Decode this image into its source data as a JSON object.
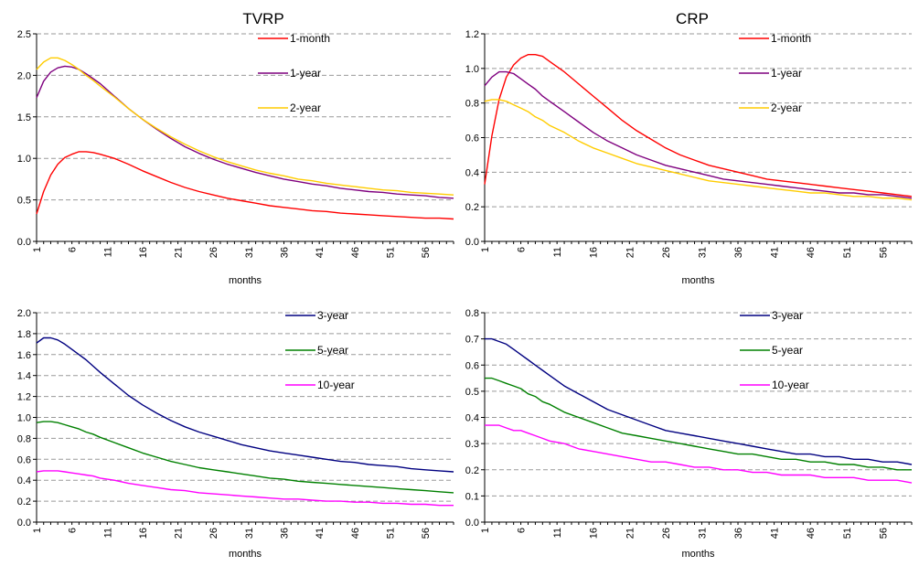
{
  "chart_data": [
    {
      "type": "line",
      "title": "TVRP",
      "xlabel": "months",
      "ylabel": "",
      "x_tick_labels": [
        "1",
        "6",
        "11",
        "16",
        "21",
        "26",
        "31",
        "36",
        "41",
        "46",
        "51",
        "56"
      ],
      "x_range": [
        1,
        60
      ],
      "ylim": [
        0,
        2.5
      ],
      "y_ticks": [
        "0.0",
        "0.5",
        "1.0",
        "1.5",
        "2.0",
        "2.5"
      ],
      "grid": "horizontal dashed",
      "legend_position": "top-right",
      "series": [
        {
          "name": "1-month",
          "color": "#ff0000",
          "x": [
            1,
            2,
            3,
            4,
            5,
            6,
            7,
            8,
            9,
            10,
            12,
            14,
            16,
            18,
            20,
            22,
            24,
            26,
            28,
            30,
            32,
            34,
            36,
            38,
            40,
            42,
            44,
            46,
            48,
            50,
            52,
            54,
            56,
            58,
            60
          ],
          "values": [
            0.33,
            0.6,
            0.8,
            0.93,
            1.01,
            1.05,
            1.08,
            1.08,
            1.07,
            1.05,
            1.0,
            0.93,
            0.85,
            0.78,
            0.71,
            0.65,
            0.6,
            0.56,
            0.52,
            0.49,
            0.46,
            0.43,
            0.41,
            0.39,
            0.37,
            0.36,
            0.34,
            0.33,
            0.32,
            0.31,
            0.3,
            0.29,
            0.28,
            0.28,
            0.27
          ]
        },
        {
          "name": "1-year",
          "color": "#7f007f",
          "x": [
            1,
            2,
            3,
            4,
            5,
            6,
            7,
            8,
            9,
            10,
            12,
            14,
            16,
            18,
            20,
            22,
            24,
            26,
            28,
            30,
            32,
            34,
            36,
            38,
            40,
            42,
            44,
            46,
            48,
            50,
            52,
            54,
            56,
            58,
            60
          ],
          "values": [
            1.73,
            1.93,
            2.04,
            2.09,
            2.11,
            2.1,
            2.07,
            2.02,
            1.96,
            1.9,
            1.75,
            1.6,
            1.47,
            1.35,
            1.24,
            1.14,
            1.06,
            0.99,
            0.93,
            0.88,
            0.83,
            0.79,
            0.75,
            0.72,
            0.69,
            0.67,
            0.64,
            0.62,
            0.6,
            0.59,
            0.57,
            0.56,
            0.55,
            0.53,
            0.52
          ]
        },
        {
          "name": "2-year",
          "color": "#ffcc00",
          "x": [
            1,
            2,
            3,
            4,
            5,
            6,
            7,
            8,
            9,
            10,
            12,
            14,
            16,
            18,
            20,
            22,
            24,
            26,
            28,
            30,
            32,
            34,
            36,
            38,
            40,
            42,
            44,
            46,
            48,
            50,
            52,
            54,
            56,
            58,
            60
          ],
          "values": [
            2.07,
            2.16,
            2.21,
            2.21,
            2.18,
            2.13,
            2.07,
            2.0,
            1.94,
            1.87,
            1.74,
            1.6,
            1.47,
            1.36,
            1.26,
            1.17,
            1.09,
            1.02,
            0.96,
            0.91,
            0.86,
            0.82,
            0.79,
            0.75,
            0.73,
            0.7,
            0.68,
            0.66,
            0.64,
            0.62,
            0.61,
            0.59,
            0.58,
            0.57,
            0.56
          ]
        }
      ]
    },
    {
      "type": "line",
      "title": "CRP",
      "xlabel": "months",
      "ylabel": "",
      "x_tick_labels": [
        "1",
        "6",
        "11",
        "16",
        "21",
        "26",
        "31",
        "36",
        "41",
        "46",
        "51",
        "56"
      ],
      "x_range": [
        1,
        60
      ],
      "ylim": [
        0,
        1.2
      ],
      "y_ticks": [
        "0.0",
        "0.2",
        "0.4",
        "0.6",
        "0.8",
        "1.0",
        "1.2"
      ],
      "grid": "horizontal dashed",
      "legend_position": "top-right",
      "series": [
        {
          "name": "1-month",
          "color": "#ff0000",
          "x": [
            1,
            2,
            3,
            4,
            5,
            6,
            7,
            8,
            9,
            10,
            12,
            14,
            16,
            18,
            20,
            22,
            24,
            26,
            28,
            30,
            32,
            34,
            36,
            38,
            40,
            42,
            44,
            46,
            48,
            50,
            52,
            54,
            56,
            58,
            60
          ],
          "values": [
            0.33,
            0.61,
            0.82,
            0.95,
            1.02,
            1.06,
            1.08,
            1.08,
            1.07,
            1.04,
            0.98,
            0.91,
            0.84,
            0.77,
            0.7,
            0.64,
            0.59,
            0.54,
            0.5,
            0.47,
            0.44,
            0.42,
            0.4,
            0.38,
            0.36,
            0.35,
            0.34,
            0.33,
            0.32,
            0.31,
            0.3,
            0.29,
            0.28,
            0.27,
            0.26
          ]
        },
        {
          "name": "1-year",
          "color": "#7f007f",
          "x": [
            1,
            2,
            3,
            4,
            5,
            6,
            7,
            8,
            9,
            10,
            12,
            14,
            16,
            18,
            20,
            22,
            24,
            26,
            28,
            30,
            32,
            34,
            36,
            38,
            40,
            42,
            44,
            46,
            48,
            50,
            52,
            54,
            56,
            58,
            60
          ],
          "values": [
            0.9,
            0.95,
            0.98,
            0.98,
            0.97,
            0.94,
            0.91,
            0.88,
            0.84,
            0.81,
            0.75,
            0.69,
            0.63,
            0.58,
            0.54,
            0.5,
            0.47,
            0.44,
            0.42,
            0.4,
            0.38,
            0.36,
            0.35,
            0.34,
            0.33,
            0.32,
            0.31,
            0.3,
            0.29,
            0.28,
            0.28,
            0.27,
            0.27,
            0.26,
            0.25
          ]
        },
        {
          "name": "2-year",
          "color": "#ffcc00",
          "x": [
            1,
            2,
            3,
            4,
            5,
            6,
            7,
            8,
            9,
            10,
            12,
            14,
            16,
            18,
            20,
            22,
            24,
            26,
            28,
            30,
            32,
            34,
            36,
            38,
            40,
            42,
            44,
            46,
            48,
            50,
            52,
            54,
            56,
            58,
            60
          ],
          "values": [
            0.81,
            0.82,
            0.82,
            0.81,
            0.79,
            0.77,
            0.75,
            0.72,
            0.7,
            0.67,
            0.63,
            0.58,
            0.54,
            0.51,
            0.48,
            0.45,
            0.43,
            0.41,
            0.39,
            0.37,
            0.35,
            0.34,
            0.33,
            0.32,
            0.31,
            0.3,
            0.29,
            0.28,
            0.28,
            0.27,
            0.26,
            0.26,
            0.25,
            0.25,
            0.24
          ]
        }
      ]
    },
    {
      "type": "line",
      "title": "",
      "xlabel": "months",
      "ylabel": "",
      "x_tick_labels": [
        "1",
        "6",
        "11",
        "16",
        "21",
        "26",
        "31",
        "36",
        "41",
        "46",
        "51",
        "56"
      ],
      "x_range": [
        1,
        60
      ],
      "ylim": [
        0,
        2.0
      ],
      "y_ticks": [
        "0.0",
        "0.2",
        "0.4",
        "0.6",
        "0.8",
        "1.0",
        "1.2",
        "1.4",
        "1.6",
        "1.8",
        "2.0"
      ],
      "grid": "horizontal dashed",
      "legend_position": "top-right",
      "series": [
        {
          "name": "3-year",
          "color": "#000080",
          "x": [
            1,
            2,
            3,
            4,
            5,
            6,
            7,
            8,
            9,
            10,
            12,
            14,
            16,
            18,
            20,
            22,
            24,
            26,
            28,
            30,
            32,
            34,
            36,
            38,
            40,
            42,
            44,
            46,
            48,
            50,
            52,
            54,
            56,
            58,
            60
          ],
          "values": [
            1.71,
            1.76,
            1.76,
            1.74,
            1.7,
            1.65,
            1.6,
            1.55,
            1.49,
            1.43,
            1.32,
            1.21,
            1.12,
            1.04,
            0.97,
            0.91,
            0.86,
            0.82,
            0.78,
            0.74,
            0.71,
            0.68,
            0.66,
            0.64,
            0.62,
            0.6,
            0.58,
            0.57,
            0.55,
            0.54,
            0.53,
            0.51,
            0.5,
            0.49,
            0.48
          ]
        },
        {
          "name": "5-year",
          "color": "#008000",
          "x": [
            1,
            2,
            3,
            4,
            5,
            6,
            7,
            8,
            9,
            10,
            12,
            14,
            16,
            18,
            20,
            22,
            24,
            26,
            28,
            30,
            32,
            34,
            36,
            38,
            40,
            42,
            44,
            46,
            48,
            50,
            52,
            54,
            56,
            58,
            60
          ],
          "values": [
            0.95,
            0.96,
            0.96,
            0.95,
            0.93,
            0.91,
            0.89,
            0.86,
            0.84,
            0.81,
            0.76,
            0.71,
            0.66,
            0.62,
            0.58,
            0.55,
            0.52,
            0.5,
            0.48,
            0.46,
            0.44,
            0.42,
            0.41,
            0.39,
            0.38,
            0.37,
            0.36,
            0.35,
            0.34,
            0.33,
            0.32,
            0.31,
            0.3,
            0.29,
            0.28
          ]
        },
        {
          "name": "10-year",
          "color": "#ff00ff",
          "x": [
            1,
            2,
            3,
            4,
            5,
            6,
            7,
            8,
            9,
            10,
            12,
            14,
            16,
            18,
            20,
            22,
            24,
            26,
            28,
            30,
            32,
            34,
            36,
            38,
            40,
            42,
            44,
            46,
            48,
            50,
            52,
            54,
            56,
            58,
            60
          ],
          "values": [
            0.48,
            0.49,
            0.49,
            0.49,
            0.48,
            0.47,
            0.46,
            0.45,
            0.44,
            0.42,
            0.4,
            0.37,
            0.35,
            0.33,
            0.31,
            0.3,
            0.28,
            0.27,
            0.26,
            0.25,
            0.24,
            0.23,
            0.22,
            0.22,
            0.21,
            0.2,
            0.2,
            0.19,
            0.19,
            0.18,
            0.18,
            0.17,
            0.17,
            0.16,
            0.16
          ]
        }
      ]
    },
    {
      "type": "line",
      "title": "",
      "xlabel": "months",
      "ylabel": "",
      "x_tick_labels": [
        "1",
        "6",
        "11",
        "16",
        "21",
        "26",
        "31",
        "36",
        "41",
        "46",
        "51",
        "56"
      ],
      "x_range": [
        1,
        60
      ],
      "ylim": [
        0,
        0.8
      ],
      "y_ticks": [
        "0.0",
        "0.1",
        "0.2",
        "0.3",
        "0.4",
        "0.5",
        "0.6",
        "0.7",
        "0.8"
      ],
      "grid": "horizontal dashed",
      "legend_position": "top-right",
      "series": [
        {
          "name": "3-year",
          "color": "#000080",
          "x": [
            1,
            2,
            3,
            4,
            5,
            6,
            7,
            8,
            9,
            10,
            12,
            14,
            16,
            18,
            20,
            22,
            24,
            26,
            28,
            30,
            32,
            34,
            36,
            38,
            40,
            42,
            44,
            46,
            48,
            50,
            52,
            54,
            56,
            58,
            60
          ],
          "values": [
            0.7,
            0.7,
            0.69,
            0.68,
            0.66,
            0.64,
            0.62,
            0.6,
            0.58,
            0.56,
            0.52,
            0.49,
            0.46,
            0.43,
            0.41,
            0.39,
            0.37,
            0.35,
            0.34,
            0.33,
            0.32,
            0.31,
            0.3,
            0.29,
            0.28,
            0.27,
            0.26,
            0.26,
            0.25,
            0.25,
            0.24,
            0.24,
            0.23,
            0.23,
            0.22
          ]
        },
        {
          "name": "5-year",
          "color": "#008000",
          "x": [
            1,
            2,
            3,
            4,
            5,
            6,
            7,
            8,
            9,
            10,
            12,
            14,
            16,
            18,
            20,
            22,
            24,
            26,
            28,
            30,
            32,
            34,
            36,
            38,
            40,
            42,
            44,
            46,
            48,
            50,
            52,
            54,
            56,
            58,
            60
          ],
          "values": [
            0.55,
            0.55,
            0.54,
            0.53,
            0.52,
            0.51,
            0.49,
            0.48,
            0.46,
            0.45,
            0.42,
            0.4,
            0.38,
            0.36,
            0.34,
            0.33,
            0.32,
            0.31,
            0.3,
            0.29,
            0.28,
            0.27,
            0.26,
            0.26,
            0.25,
            0.24,
            0.24,
            0.23,
            0.23,
            0.22,
            0.22,
            0.21,
            0.21,
            0.2,
            0.2
          ]
        },
        {
          "name": "10-year",
          "color": "#ff00ff",
          "x": [
            1,
            2,
            3,
            4,
            5,
            6,
            7,
            8,
            9,
            10,
            12,
            14,
            16,
            18,
            20,
            22,
            24,
            26,
            28,
            30,
            32,
            34,
            36,
            38,
            40,
            42,
            44,
            46,
            48,
            50,
            52,
            54,
            56,
            58,
            60
          ],
          "values": [
            0.37,
            0.37,
            0.37,
            0.36,
            0.35,
            0.35,
            0.34,
            0.33,
            0.32,
            0.31,
            0.3,
            0.28,
            0.27,
            0.26,
            0.25,
            0.24,
            0.23,
            0.23,
            0.22,
            0.21,
            0.21,
            0.2,
            0.2,
            0.19,
            0.19,
            0.18,
            0.18,
            0.18,
            0.17,
            0.17,
            0.17,
            0.16,
            0.16,
            0.16,
            0.15
          ]
        }
      ]
    }
  ]
}
